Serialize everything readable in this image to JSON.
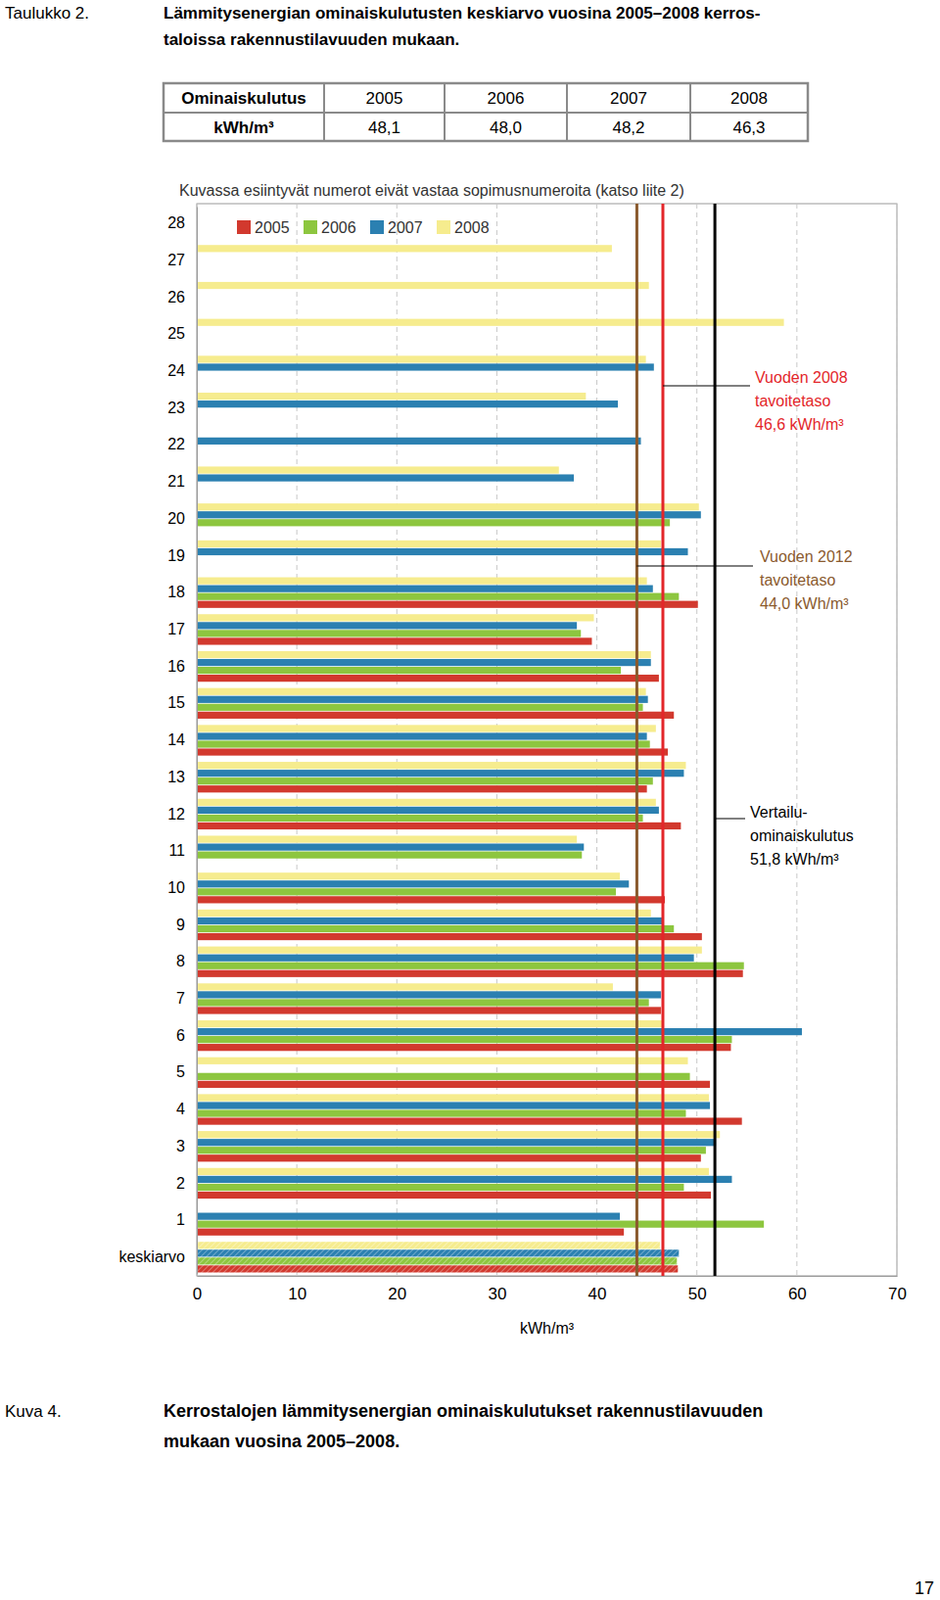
{
  "document": {
    "table_number": "Taulukko 2.",
    "table_title": [
      "Lämmitysenergian ominaiskulutusten keskiarvo vuosina 2005–2008 kerros-",
      "taloissa rakennustilavuuden mukaan."
    ],
    "table": {
      "header": [
        "Ominaiskulutus",
        "2005",
        "2006",
        "2007",
        "2008"
      ],
      "rows": [
        [
          "kWh/m³",
          "48,1",
          "48,0",
          "48,2",
          "46,3"
        ]
      ]
    },
    "figure_number": "Kuva 4.",
    "figure_caption": [
      "Kerrostalojen lämmitysenergian ominaiskulutukset rakennustilavuuden",
      "mukaan vuosina 2005–2008."
    ],
    "page_number": "17"
  },
  "chart_data": {
    "type": "bar",
    "orientation": "horizontal",
    "subtitle": "Kuvassa esiintyvät numerot eivät vastaa sopimusnumeroita (katso liite 2)",
    "x_label": "kWh/m³",
    "categories": [
      "keskiarvo",
      "1",
      "2",
      "3",
      "4",
      "5",
      "6",
      "7",
      "8",
      "9",
      "10",
      "11",
      "12",
      "13",
      "14",
      "15",
      "16",
      "17",
      "18",
      "19",
      "20",
      "21",
      "22",
      "23",
      "24",
      "25",
      "26",
      "27",
      "28"
    ],
    "series": [
      {
        "name": "2005",
        "color": "#d2392e",
        "values": [
          48.1,
          42.7,
          51.4,
          50.4,
          54.5,
          51.3,
          53.4,
          46.4,
          54.6,
          50.5,
          46.8,
          null,
          48.4,
          45.0,
          47.1,
          47.7,
          46.2,
          39.5,
          50.1,
          null,
          null,
          null,
          null,
          null,
          null,
          null,
          null,
          null,
          null
        ]
      },
      {
        "name": "2006",
        "color": "#8dc63f",
        "values": [
          48.0,
          56.7,
          48.7,
          50.9,
          48.9,
          49.3,
          53.5,
          45.2,
          54.7,
          47.7,
          41.9,
          38.5,
          44.6,
          45.6,
          45.3,
          44.6,
          42.4,
          38.4,
          48.2,
          null,
          47.3,
          null,
          null,
          null,
          null,
          null,
          null,
          null,
          null
        ]
      },
      {
        "name": "2007",
        "color": "#2b80b1",
        "values": [
          48.2,
          42.3,
          53.5,
          51.9,
          51.3,
          null,
          60.5,
          46.4,
          49.7,
          46.6,
          43.2,
          38.7,
          46.2,
          48.7,
          45.0,
          45.1,
          45.4,
          38.0,
          45.6,
          49.1,
          50.4,
          37.7,
          44.4,
          42.1,
          45.7,
          null,
          null,
          null,
          null
        ]
      },
      {
        "name": "2008",
        "color": "#f6ec8e",
        "values": [
          46.3,
          null,
          51.2,
          52.3,
          51.2,
          49.1,
          46.6,
          41.6,
          50.5,
          45.4,
          42.3,
          38.0,
          45.9,
          48.9,
          45.9,
          44.9,
          45.4,
          39.7,
          45.0,
          46.4,
          50.2,
          36.2,
          null,
          38.9,
          44.9,
          58.7,
          45.2,
          41.5,
          null
        ]
      }
    ],
    "xlim": [
      0,
      70
    ],
    "xticks": [
      0,
      10,
      20,
      30,
      40,
      50,
      60,
      70
    ],
    "grid": true,
    "legend": "top-left",
    "annotations": [
      {
        "value": 46.6,
        "text": [
          "Vuoden 2008",
          "tavoitetaso",
          "46,6 kWh/m³"
        ],
        "color": "#e3262a"
      },
      {
        "value": 44.0,
        "text": [
          "Vuoden 2012",
          "tavoitetaso",
          "44,0 kWh/m³"
        ],
        "color": "#8a5a2e"
      },
      {
        "value": 51.8,
        "text": [
          "Vertailu-",
          "ominaiskulutus",
          "51,8 kWh/m³"
        ],
        "color": "#000000"
      }
    ]
  }
}
